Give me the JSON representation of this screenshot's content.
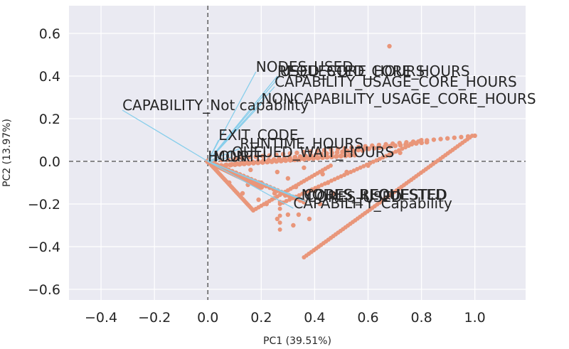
{
  "chart_data": {
    "type": "scatter",
    "xlabel": "PC1 (39.51%)",
    "ylabel": "PC2 (13.97%)",
    "xlim": [
      -0.52,
      1.19
    ],
    "ylim": [
      -0.65,
      0.73
    ],
    "xticks": [
      -0.4,
      -0.2,
      0.0,
      0.2,
      0.4,
      0.6,
      0.8,
      1.0
    ],
    "yticks": [
      -0.6,
      -0.4,
      -0.2,
      0.0,
      0.2,
      0.4,
      0.6
    ],
    "xtick_labels": [
      "−0.4",
      "−0.2",
      "0.0",
      "0.2",
      "0.4",
      "0.6",
      "0.8",
      "1.0"
    ],
    "ytick_labels": [
      "−0.6",
      "−0.4",
      "−0.2",
      "0.0",
      "0.2",
      "0.4",
      "0.6"
    ],
    "grid": true,
    "reference_lines": [
      {
        "axis": "x",
        "value": 0
      },
      {
        "axis": "y",
        "value": 0
      }
    ],
    "point_color": "#e9967a",
    "loading_color": "#87ceeb",
    "background_color": "#eaeaf2",
    "loadings": [
      {
        "label": "NODES_USED",
        "x": 0.18,
        "y": 0.42
      },
      {
        "label": "REQUESTED_CORE_HOURS",
        "x": 0.26,
        "y": 0.4
      },
      {
        "label": "USED_CORE_HOURS",
        "x": 0.27,
        "y": 0.4
      },
      {
        "label": "CAPABILITY_USAGE_CORE_HOURS",
        "x": 0.25,
        "y": 0.35
      },
      {
        "label": "NONCAPABILITY_USAGE_CORE_HOURS",
        "x": 0.2,
        "y": 0.27
      },
      {
        "label": "CAPABILITY_Not capability",
        "x": -0.32,
        "y": 0.24
      },
      {
        "label": "EXIT_CODE",
        "x": 0.04,
        "y": 0.1
      },
      {
        "label": "RUNTIME_HOURS",
        "x": 0.12,
        "y": 0.06
      },
      {
        "label": "QUEUED_WAIT_HOURS",
        "x": 0.09,
        "y": 0.02
      },
      {
        "label": "HOUR",
        "x": 0.0,
        "y": 0.0
      },
      {
        "label": "MONTH",
        "x": 0.02,
        "y": 0.0
      },
      {
        "label": "NODES_REQUESTED",
        "x": 0.35,
        "y": -0.18
      },
      {
        "label": "CORES_REQUESTED",
        "x": 0.36,
        "y": -0.18
      },
      {
        "label": "CORES_USED",
        "x": 0.37,
        "y": -0.19
      },
      {
        "label": "CAPABILITY_Capability",
        "x": 0.32,
        "y": -0.22
      }
    ],
    "point_groups": [
      {
        "from": [
          0.0,
          0.0
        ],
        "to": [
          1.0,
          0.12
        ],
        "n": 40,
        "size": 3.2
      },
      {
        "from": [
          0.05,
          -0.02
        ],
        "to": [
          0.82,
          0.09
        ],
        "n": 40,
        "size": 3.4
      },
      {
        "from": [
          0.36,
          -0.45
        ],
        "to": [
          0.99,
          0.12
        ],
        "n": 70,
        "size": 3.0
      },
      {
        "from": [
          0.27,
          -0.2
        ],
        "to": [
          0.8,
          0.1
        ],
        "n": 45,
        "size": 3.0
      },
      {
        "from": [
          0.0,
          0.0
        ],
        "to": [
          0.17,
          -0.23
        ],
        "n": 35,
        "size": 3.0
      },
      {
        "from": [
          0.17,
          -0.23
        ],
        "to": [
          0.46,
          -0.02
        ],
        "n": 30,
        "size": 3.0
      },
      {
        "from": [
          0.02,
          -0.01
        ],
        "to": [
          0.36,
          -0.19
        ],
        "n": 25,
        "size": 3.6
      },
      {
        "from": [
          0.0,
          0.0
        ],
        "to": [
          0.2,
          -0.12
        ],
        "n": 30,
        "size": 4.0
      },
      {
        "from": [
          0.05,
          -0.02
        ],
        "to": [
          0.55,
          0.03
        ],
        "n": 30,
        "size": 3.6
      },
      {
        "from": [
          0.27,
          -0.19
        ],
        "to": [
          0.27,
          -0.32
        ],
        "n": 5,
        "size": 3.0
      }
    ],
    "points": [
      [
        0.68,
        0.54
      ],
      [
        0.3,
        -0.25
      ],
      [
        0.32,
        -0.3
      ],
      [
        0.26,
        -0.27
      ],
      [
        0.29,
        -0.16
      ],
      [
        0.25,
        -0.15
      ],
      [
        0.15,
        -0.11
      ],
      [
        0.1,
        -0.06
      ],
      [
        0.19,
        -0.18
      ],
      [
        0.13,
        -0.15
      ],
      [
        0.22,
        -0.2
      ],
      [
        0.34,
        -0.25
      ],
      [
        0.38,
        -0.27
      ],
      [
        0.2,
        -0.1
      ],
      [
        0.33,
        -0.12
      ],
      [
        0.4,
        -0.14
      ],
      [
        0.45,
        -0.1
      ],
      [
        0.52,
        -0.05
      ],
      [
        0.6,
        -0.02
      ],
      [
        0.58,
        0.05
      ],
      [
        0.64,
        0.07
      ],
      [
        0.72,
        0.04
      ],
      [
        0.47,
        -0.15
      ],
      [
        0.43,
        -0.06
      ],
      [
        0.26,
        -0.05
      ],
      [
        0.36,
        -0.03
      ],
      [
        0.16,
        -0.04
      ],
      [
        0.08,
        -0.1
      ],
      [
        0.42,
        -0.2
      ],
      [
        0.3,
        -0.08
      ]
    ]
  }
}
